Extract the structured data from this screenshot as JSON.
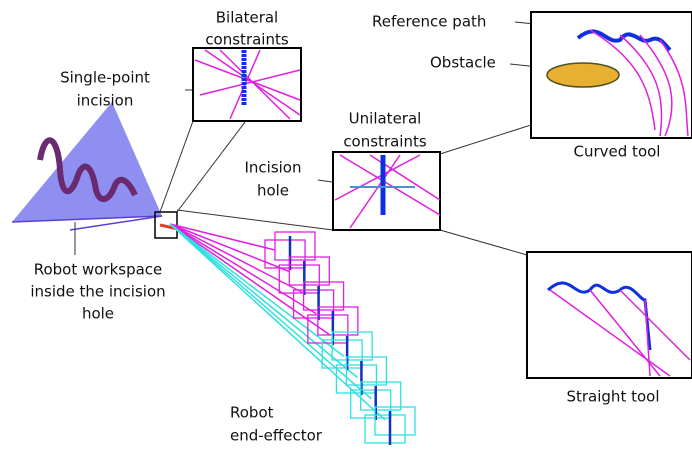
{
  "labels": {
    "bilateral_constraints": [
      "Bilateral",
      "constraints"
    ],
    "single_point_incision": [
      "Single-point",
      "incision"
    ],
    "reference_path": "Reference path",
    "obstacle": "Obstacle",
    "curved_tool": "Curved tool",
    "unilateral_constraints": [
      "Unilateral",
      "constraints"
    ],
    "incision_hole": [
      "Incision",
      "hole"
    ],
    "robot_workspace": [
      "Robot workspace",
      "inside the incision",
      "hole"
    ],
    "straight_tool": "Straight tool",
    "robot_end_effector": [
      "Robot",
      "end-effector"
    ]
  }
}
